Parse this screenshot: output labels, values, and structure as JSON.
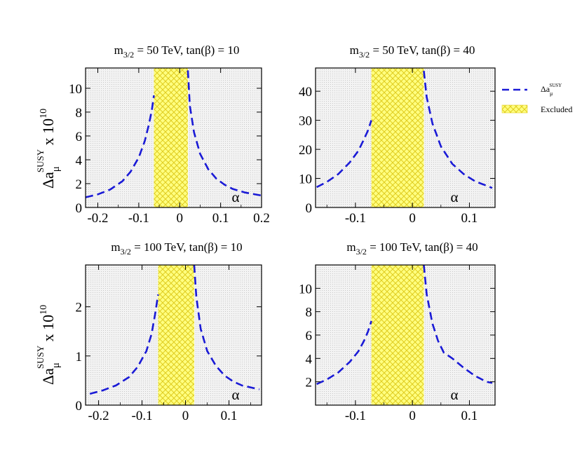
{
  "chart_data": [
    {
      "type": "line",
      "title_main": "m",
      "title_sub": "3/2",
      "title_rest": " = 50 TeV, tan(β) = 10",
      "xlabel": "α",
      "xlim": [
        -0.23,
        0.2
      ],
      "ylim": [
        0,
        11.7
      ],
      "xticks": [
        -0.2,
        -0.1,
        0,
        0.1,
        0.2
      ],
      "xtick_labels": [
        "-0.2",
        "-0.1",
        "0",
        "0.1",
        "0.2"
      ],
      "yticks": [
        0,
        2,
        4,
        6,
        8,
        10
      ],
      "ytick_labels": [
        "0",
        "2",
        "4",
        "6",
        "8",
        "10"
      ],
      "excluded_range": [
        -0.063,
        0.02
      ],
      "series": [
        {
          "name": "left",
          "x": [
            -0.23,
            -0.2,
            -0.17,
            -0.14,
            -0.12,
            -0.1,
            -0.085,
            -0.075,
            -0.068,
            -0.063
          ],
          "y": [
            0.85,
            1.1,
            1.5,
            2.2,
            3.0,
            4.2,
            5.6,
            7.0,
            8.2,
            9.4
          ]
        },
        {
          "name": "right",
          "x": [
            0.02,
            0.025,
            0.035,
            0.05,
            0.07,
            0.09,
            0.11,
            0.13,
            0.16,
            0.2
          ],
          "y": [
            11.5,
            8.5,
            6.3,
            4.5,
            3.2,
            2.4,
            1.9,
            1.55,
            1.25,
            1.0
          ]
        }
      ]
    },
    {
      "type": "line",
      "title_main": "m",
      "title_sub": "3/2",
      "title_rest": " = 50 TeV, tan(β) = 40",
      "xlabel": "α",
      "xlim": [
        -0.17,
        0.145
      ],
      "ylim": [
        0,
        48
      ],
      "xticks": [
        -0.1,
        0,
        0.1
      ],
      "xtick_labels": [
        "-0.1",
        "0",
        "0.1"
      ],
      "yticks": [
        0,
        10,
        20,
        30,
        40
      ],
      "ytick_labels": [
        "0",
        "10",
        "20",
        "30",
        "40"
      ],
      "excluded_range": [
        -0.072,
        0.02
      ],
      "series": [
        {
          "name": "left",
          "x": [
            -0.168,
            -0.15,
            -0.13,
            -0.11,
            -0.095,
            -0.085,
            -0.078,
            -0.072
          ],
          "y": [
            7.0,
            8.8,
            11.5,
            15.5,
            19.5,
            23.5,
            26.5,
            30.0
          ]
        },
        {
          "name": "right",
          "x": [
            0.02,
            0.025,
            0.035,
            0.05,
            0.07,
            0.09,
            0.11,
            0.13,
            0.14
          ],
          "y": [
            47,
            38,
            29,
            21,
            15,
            11.5,
            9.0,
            7.5,
            6.7
          ]
        }
      ]
    },
    {
      "type": "line",
      "title_main": "m",
      "title_sub": "3/2",
      "title_rest": " = 100 TeV, tan(β) = 10",
      "xlabel": "α",
      "xlim": [
        -0.23,
        0.175
      ],
      "ylim": [
        0,
        2.85
      ],
      "xticks": [
        -0.2,
        -0.1,
        0,
        0.1
      ],
      "xtick_labels": [
        "-0.2",
        "-0.1",
        "0",
        "0.1"
      ],
      "yticks": [
        0,
        1,
        2
      ],
      "ytick_labels": [
        "0",
        "1",
        "2"
      ],
      "excluded_range": [
        -0.063,
        0.02
      ],
      "series": [
        {
          "name": "left",
          "x": [
            -0.22,
            -0.19,
            -0.16,
            -0.13,
            -0.11,
            -0.09,
            -0.078,
            -0.07,
            -0.063
          ],
          "y": [
            0.23,
            0.3,
            0.4,
            0.57,
            0.78,
            1.1,
            1.45,
            1.85,
            2.25
          ]
        },
        {
          "name": "right",
          "x": [
            0.02,
            0.025,
            0.035,
            0.05,
            0.07,
            0.09,
            0.11,
            0.13,
            0.17
          ],
          "y": [
            2.85,
            2.2,
            1.55,
            1.1,
            0.8,
            0.6,
            0.48,
            0.4,
            0.32
          ]
        }
      ]
    },
    {
      "type": "line",
      "title_main": "m",
      "title_sub": "3/2",
      "title_rest": " = 100 TeV, tan(β) = 40",
      "xlabel": "α",
      "xlim": [
        -0.17,
        0.145
      ],
      "ylim": [
        0,
        12
      ],
      "xticks": [
        -0.1,
        0,
        0.1
      ],
      "xtick_labels": [
        "-0.1",
        "0",
        "0.1"
      ],
      "yticks": [
        2,
        4,
        6,
        8,
        10
      ],
      "ytick_labels": [
        "2",
        "4",
        "6",
        "8",
        "10"
      ],
      "excluded_range": [
        -0.072,
        0.02
      ],
      "series": [
        {
          "name": "left",
          "x": [
            -0.168,
            -0.15,
            -0.13,
            -0.11,
            -0.095,
            -0.085,
            -0.078,
            -0.072
          ],
          "y": [
            1.8,
            2.2,
            2.8,
            3.7,
            4.6,
            5.5,
            6.3,
            7.2
          ]
        },
        {
          "name": "right",
          "x": [
            0.02,
            0.025,
            0.035,
            0.045,
            0.055,
            0.07,
            0.09,
            0.11,
            0.13,
            0.14
          ],
          "y": [
            12,
            9.5,
            7.0,
            5.5,
            4.5,
            4.0,
            3.2,
            2.5,
            2.0,
            1.9
          ]
        }
      ]
    }
  ],
  "ylabel": {
    "prefix": "Δa",
    "sub": "μ",
    "sup": "SUSY",
    "suffix": " x 10",
    "exponent": "10"
  },
  "legend": {
    "line_label": "Δa",
    "line_label_sub": "μ",
    "line_label_sup": "SUSY",
    "excluded_label": "Excluded"
  },
  "colors": {
    "line": "#1a1ad6",
    "excluded_fill": "#ffff80",
    "excluded_hatch": "#e8d820",
    "background": "#efefef"
  }
}
